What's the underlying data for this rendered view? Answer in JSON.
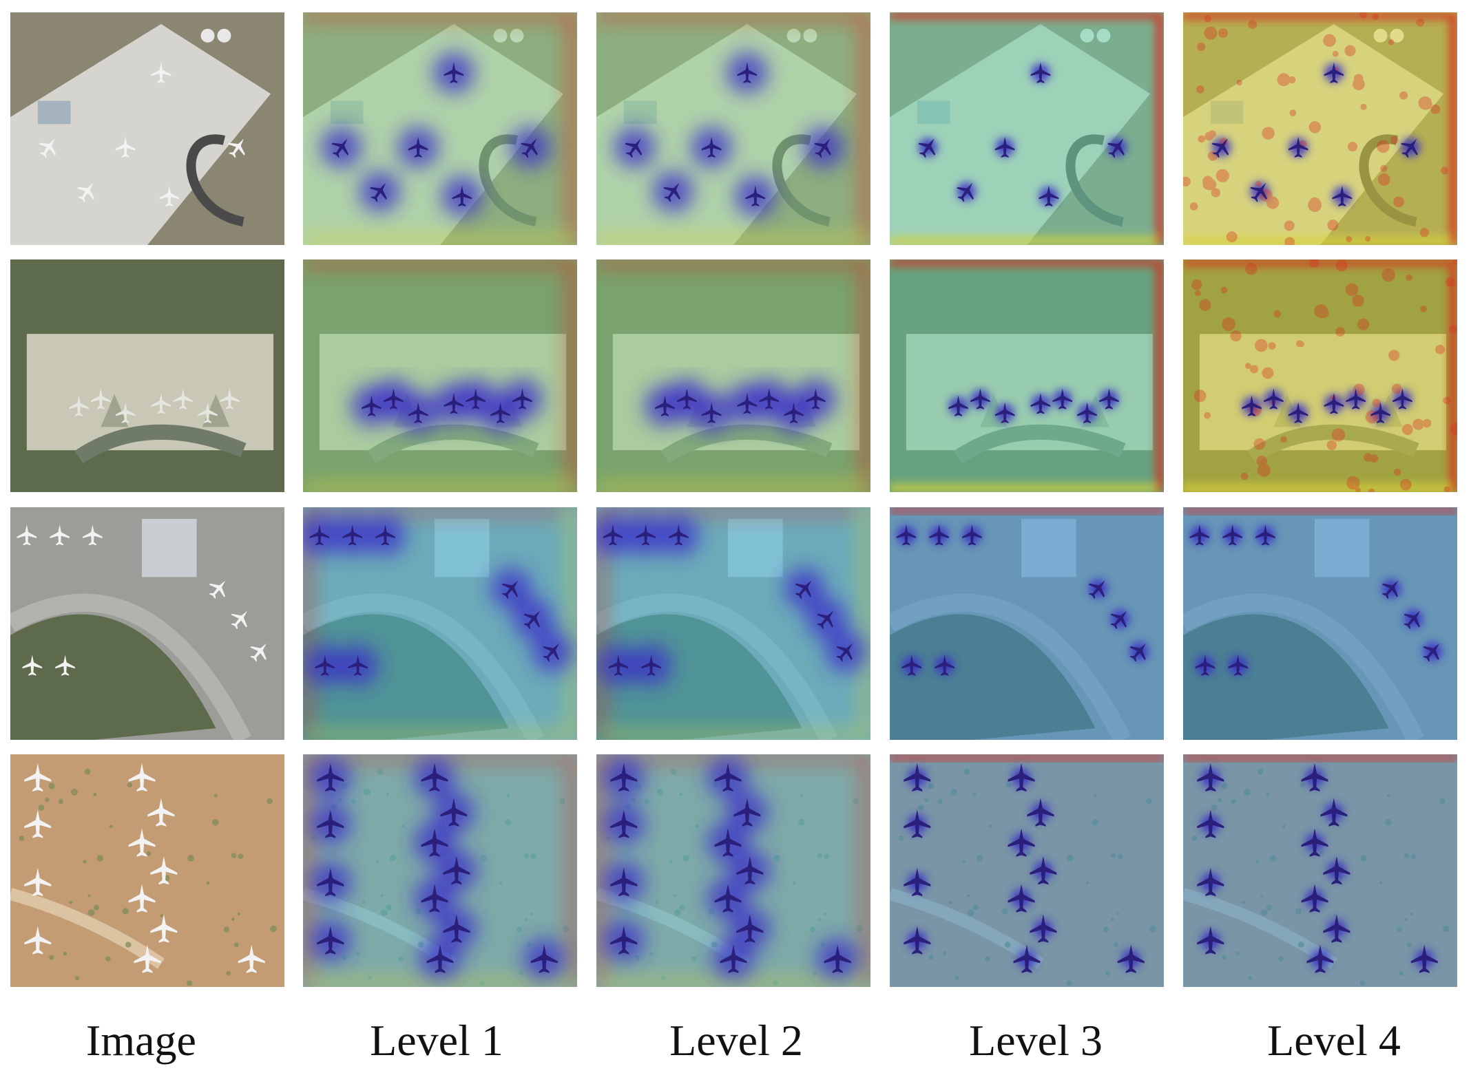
{
  "columns": [
    {
      "id": "image",
      "label": "Image"
    },
    {
      "id": "level1",
      "label": "Level 1"
    },
    {
      "id": "level2",
      "label": "Level 2"
    },
    {
      "id": "level3",
      "label": "Level 3"
    },
    {
      "id": "level4",
      "label": "Level 4"
    }
  ],
  "rows": [
    {
      "scene": "airport-apron-with-parked-aircraft",
      "base_color": "#b9b4a6"
    },
    {
      "scene": "airport-terminal-with-gates",
      "base_color": "#8f8c72"
    },
    {
      "scene": "aircraft-hangars-and-taxiway",
      "base_color": "#8d8f88"
    },
    {
      "scene": "aircraft-boneyard-on-desert-ground",
      "base_color": "#c9a37e"
    }
  ],
  "heatmap_colors": {
    "low": "#3b2fc9",
    "mid": "#3fd3cf",
    "high": "#d8d23b",
    "peak": "#d92b1e"
  }
}
